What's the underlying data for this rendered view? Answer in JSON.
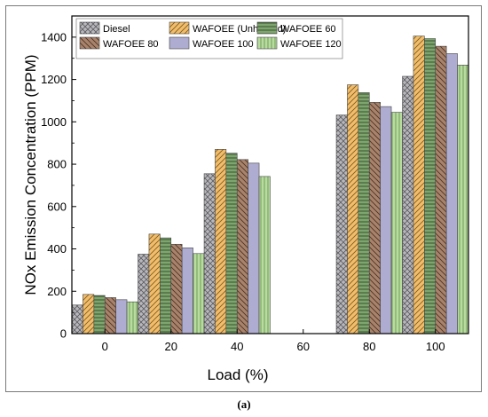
{
  "caption": "(a)",
  "chart_data": {
    "type": "bar",
    "title": "",
    "xlabel": "Load (%)",
    "ylabel": "NOx Emission Concentration (PPM)",
    "categories": [
      "0",
      "20",
      "40",
      "60",
      "80",
      "100"
    ],
    "ylim": [
      0,
      1500
    ],
    "yticks": [
      0,
      200,
      400,
      600,
      800,
      1000,
      1200,
      1400
    ],
    "grid": false,
    "legend_position": "top-left",
    "legend_columns": 3,
    "series": [
      {
        "name": "Diesel",
        "color": "#b8b8bc",
        "hatch": "crosshatch",
        "values": [
          135,
          375,
          755,
          null,
          1032,
          1215
        ]
      },
      {
        "name": "WAFOEE (Unheated)",
        "color": "#f2bd6b",
        "hatch": "diag",
        "values": [
          185,
          470,
          870,
          null,
          1175,
          1405
        ]
      },
      {
        "name": "WAFOEE 60",
        "color": "#7fa56f",
        "hatch": "hline",
        "values": [
          180,
          452,
          852,
          null,
          1138,
          1393
        ]
      },
      {
        "name": "WAFOEE 80",
        "color": "#a8836c",
        "hatch": "backdiag",
        "values": [
          170,
          422,
          822,
          null,
          1092,
          1357
        ]
      },
      {
        "name": "WAFOEE 100",
        "color": "#aeacd0",
        "hatch": "none",
        "values": [
          160,
          405,
          805,
          null,
          1072,
          1322
        ]
      },
      {
        "name": "WAFOEE 120",
        "color": "#b8dca0",
        "hatch": "vline",
        "values": [
          150,
          378,
          742,
          null,
          1045,
          1268
        ]
      }
    ]
  }
}
